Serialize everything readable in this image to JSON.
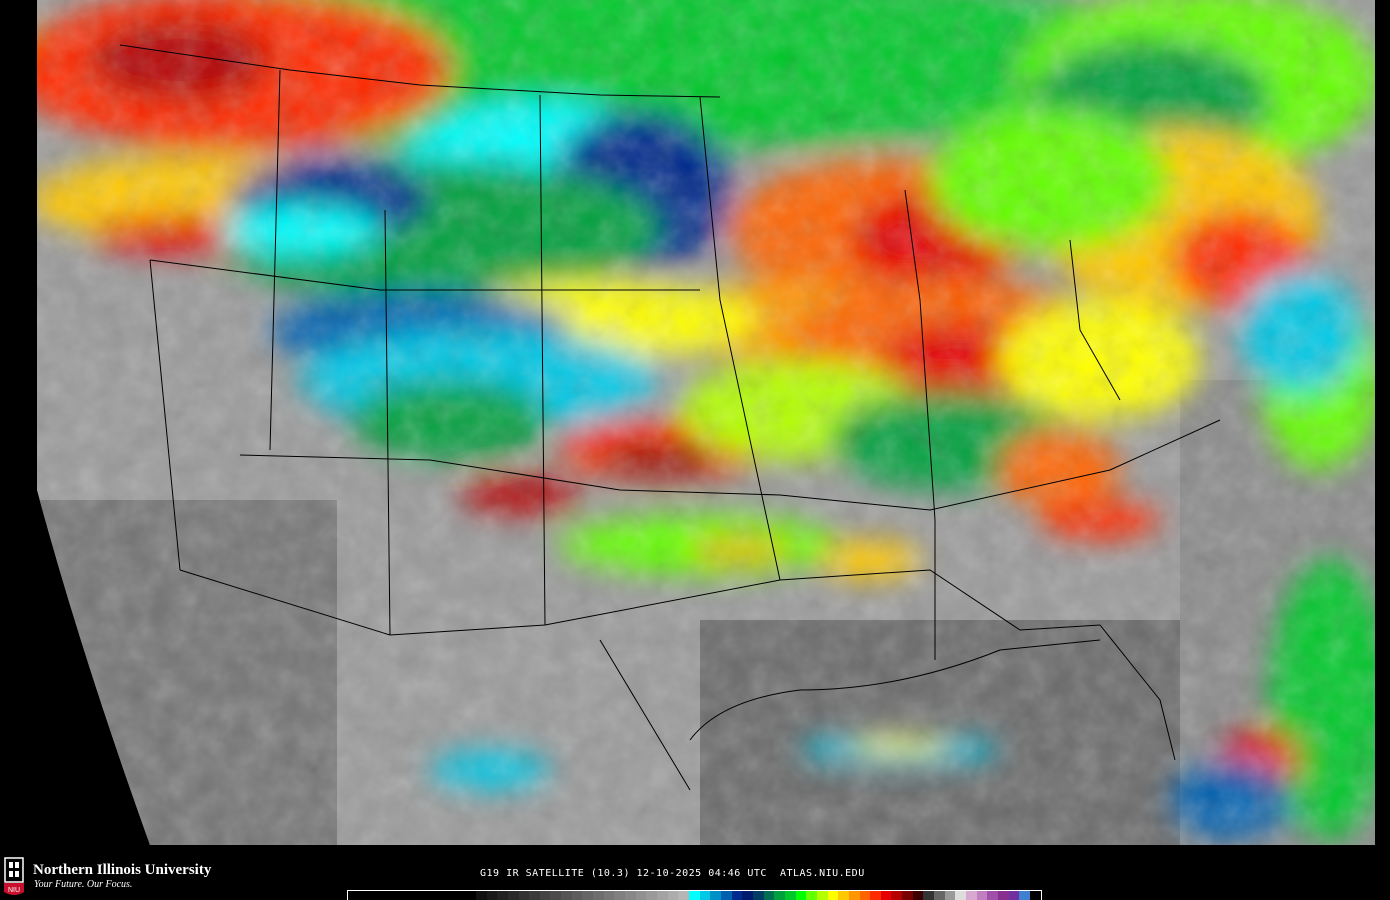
{
  "footer": {
    "university_name": "Northern Illinois University",
    "tagline": "Your Future. Our Focus.",
    "logo_text": "NIU",
    "caption": "G19 IR SATELLITE (10.3) 12-10-2025 04:46 UTC  ATLAS.NIU.EDU"
  },
  "colors": {
    "background": "#000000",
    "land_outline": "#000000",
    "logo_red": "#c8102e"
  },
  "colorbar": [
    "#000000",
    "#000000",
    "#000000",
    "#000000",
    "#000000",
    "#000000",
    "#000000",
    "#000000",
    "#000000",
    "#000000",
    "#000000",
    "#000000",
    "#111111",
    "#1a1a1a",
    "#222222",
    "#2a2a2a",
    "#333333",
    "#3b3b3b",
    "#444444",
    "#4c4c4c",
    "#555555",
    "#5d5d5d",
    "#666666",
    "#6e6e6e",
    "#777777",
    "#808080",
    "#888888",
    "#919191",
    "#9a9a9a",
    "#a3a3a3",
    "#acacac",
    "#b6b6b6",
    "#00ffff",
    "#00c8e6",
    "#0090c8",
    "#0060b0",
    "#002a8c",
    "#001a6e",
    "#003c64",
    "#006e50",
    "#00a03c",
    "#00c82a",
    "#00ff00",
    "#64ff00",
    "#b4ff00",
    "#ffff00",
    "#ffc800",
    "#ff9600",
    "#ff6400",
    "#ff2a00",
    "#e60000",
    "#b40000",
    "#780000",
    "#3c0000",
    "#333333",
    "#666666",
    "#999999",
    "#dddddd",
    "#d8a8d0",
    "#c080c0",
    "#a050a8",
    "#883090",
    "#7030a0",
    "#4080d0",
    "#000000"
  ]
}
